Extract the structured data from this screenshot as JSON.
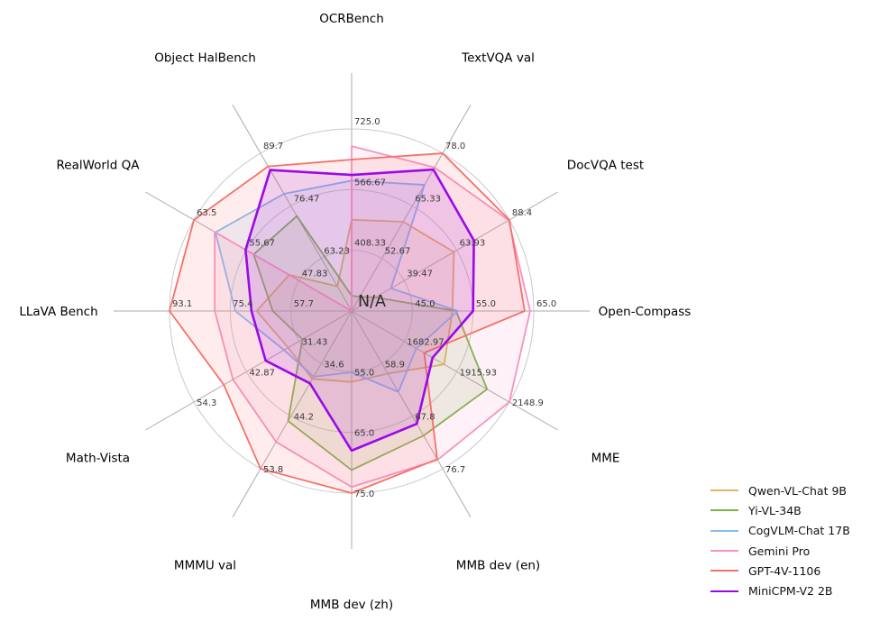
{
  "chart_data": {
    "type": "radar",
    "title": "",
    "center_label": "N/A",
    "grid": true,
    "rings_per_axis": 3,
    "legend_position": "lower right",
    "axes": [
      {
        "label": "OCRBench",
        "min": 250,
        "max": 725,
        "ticks": [
          "408.33",
          "566.67",
          "725.0"
        ]
      },
      {
        "label": "TextVQA val",
        "min": 40,
        "max": 78,
        "ticks": [
          "52.67",
          "65.33",
          "78.0"
        ]
      },
      {
        "label": "DocVQA test",
        "min": 15,
        "max": 88.4,
        "ticks": [
          "39.47",
          "63.93",
          "88.4"
        ]
      },
      {
        "label": "Open-Compass",
        "min": 35,
        "max": 65,
        "ticks": [
          "45.0",
          "55.0",
          "65.0"
        ]
      },
      {
        "label": "MME",
        "min": 1450,
        "max": 2148.9,
        "ticks": [
          "1682.97",
          "1915.93",
          "2148.9"
        ]
      },
      {
        "label": "MMB dev (en)",
        "min": 50,
        "max": 76.7,
        "ticks": [
          "58.9",
          "67.8",
          "76.7"
        ]
      },
      {
        "label": "MMB dev (zh)",
        "min": 45,
        "max": 75,
        "ticks": [
          "55.0",
          "65.0",
          "75.0"
        ]
      },
      {
        "label": "MMMU val",
        "min": 25,
        "max": 53.8,
        "ticks": [
          "34.6",
          "44.2",
          "53.8"
        ]
      },
      {
        "label": "Math-Vista",
        "min": 20,
        "max": 54.3,
        "ticks": [
          "31.43",
          "42.87",
          "54.3"
        ]
      },
      {
        "label": "LLaVA Bench",
        "min": 40,
        "max": 93.1,
        "ticks": [
          "57.7",
          "75.4",
          "93.1"
        ]
      },
      {
        "label": "RealWorld QA",
        "min": 40,
        "max": 63.5,
        "ticks": [
          "47.83",
          "55.67",
          "63.5"
        ]
      },
      {
        "label": "Object HalBench",
        "min": 50,
        "max": 89.7,
        "ticks": [
          "63.23",
          "76.47",
          "89.7"
        ]
      }
    ],
    "series": [
      {
        "name": "Qwen-VL-Chat 9B",
        "color": "#e2b564",
        "line_width": 1.8,
        "values": [
          488,
          61.5,
          62.6,
          51.6,
          1860.0,
          60.6,
          56.7,
          37.4,
          33.8,
          67.7,
          49.3,
          56.2
        ]
      },
      {
        "name": "Yi-VL-34B",
        "color": "#7cb347",
        "line_width": 1.8,
        "values": [
          290,
          43.4,
          26.0,
          52.2,
          2050.2,
          71.1,
          71.2,
          45.1,
          30.7,
          63.0,
          54.6,
          73.9
        ]
      },
      {
        "name": "CogVLM-Chat 17B",
        "color": "#82bdf3",
        "line_width": 1.8,
        "values": [
          590,
          70.4,
          33.3,
          52.5,
          1736.6,
          63.7,
          55.1,
          37.0,
          34.7,
          73.9,
          60.3,
          79.5
        ]
      },
      {
        "name": "Gemini Pro",
        "color": "#f792c4",
        "line_width": 1.8,
        "values": [
          680,
          74.6,
          88.1,
          64.4,
          2148.9,
          75.2,
          74.0,
          48.9,
          45.8,
          79.9,
          60.4,
          null
        ]
      },
      {
        "name": "GPT-4V-1106",
        "color": "#f4726a",
        "line_width": 1.8,
        "values": [
          645,
          78.0,
          88.4,
          63.5,
          1771.5,
          75.1,
          75.0,
          53.8,
          47.8,
          93.1,
          63.5,
          86.4
        ]
      },
      {
        "name": "MiniCPM-V2 2B",
        "color": "#9c09e8",
        "line_width": 2.6,
        "values": [
          605,
          74.1,
          71.9,
          55.0,
          1808.6,
          69.1,
          68.0,
          38.2,
          38.7,
          69.2,
          55.8,
          85.5
        ]
      }
    ]
  }
}
